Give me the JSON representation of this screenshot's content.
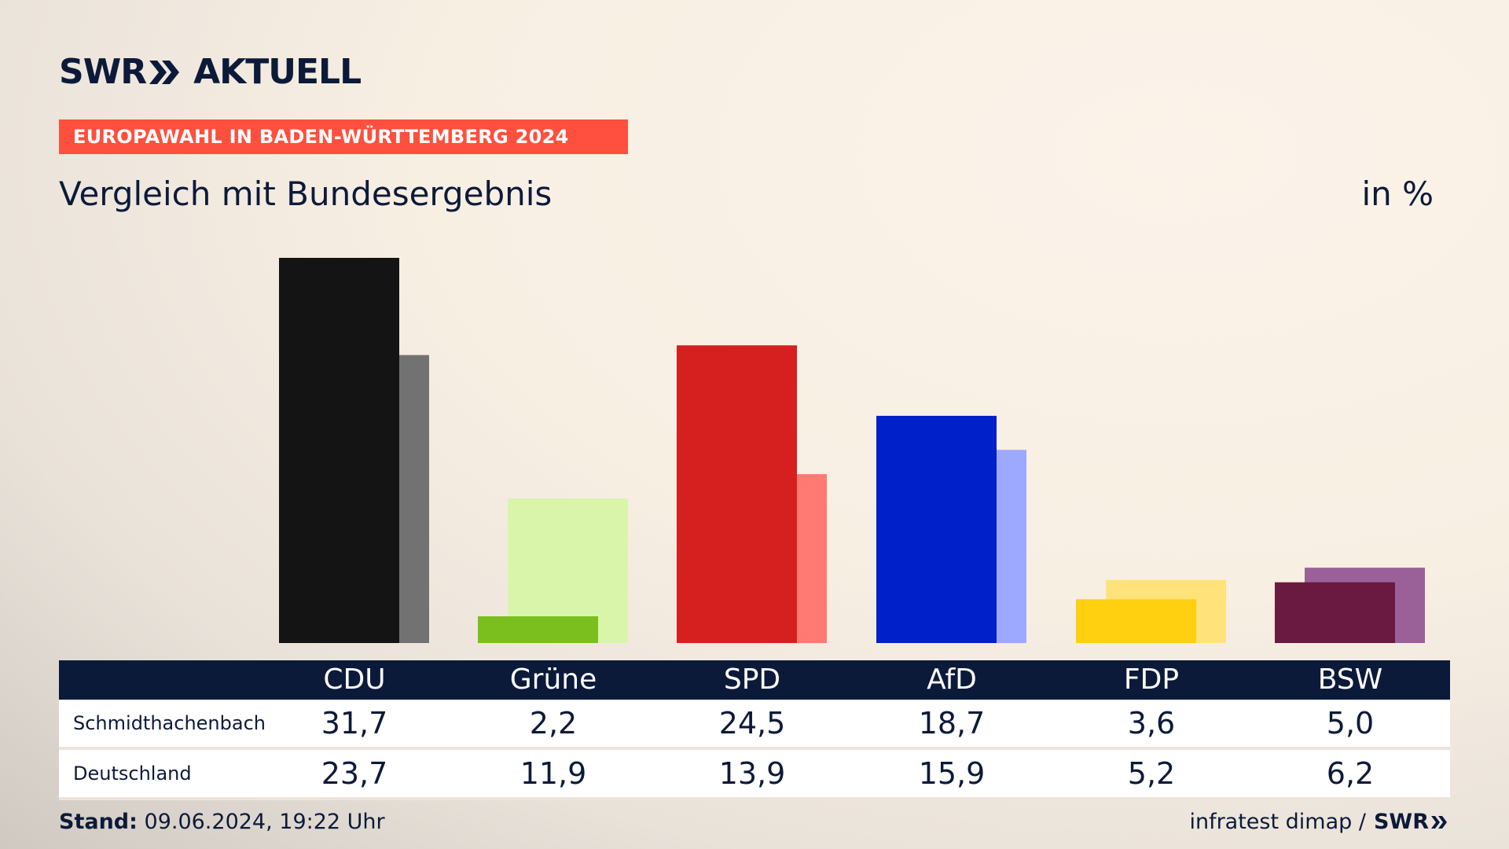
{
  "header": {
    "logo_text_1": "SWR",
    "logo_text_2": "AKTUELL",
    "badge": "EUROPAWAHL IN BADEN-WÜRTTEMBERG 2024",
    "subtitle": "Vergleich mit Bundesergebnis",
    "unit": "in %"
  },
  "chart_data": {
    "type": "bar",
    "title": "Vergleich mit Bundesergebnis",
    "unit": "in %",
    "categories": [
      "CDU",
      "Grüne",
      "SPD",
      "AfD",
      "FDP",
      "BSW"
    ],
    "series": [
      {
        "name": "Schmidthachenbach",
        "values": [
          31.7,
          2.2,
          24.5,
          18.7,
          3.6,
          5.0
        ],
        "colors": [
          "#141414",
          "#7abf1e",
          "#d62020",
          "#0021c9",
          "#ffd00f",
          "#6a1a40"
        ]
      },
      {
        "name": "Deutschland",
        "values": [
          23.7,
          11.9,
          13.9,
          15.9,
          5.2,
          6.2
        ],
        "colors": [
          "#737272",
          "#d8f5a9",
          "#ff7a72",
          "#9da9ff",
          "#ffe37a",
          "#9a6198"
        ]
      }
    ],
    "ylim": [
      0,
      31.7
    ],
    "grid": false,
    "legend": "table-below"
  },
  "table": {
    "headers": [
      "CDU",
      "Grüne",
      "SPD",
      "AfD",
      "FDP",
      "BSW"
    ],
    "rows": [
      {
        "label": "Schmidthachenbach",
        "values": [
          "31,7",
          "2,2",
          "24,5",
          "18,7",
          "3,6",
          "5,0"
        ]
      },
      {
        "label": "Deutschland",
        "values": [
          "23,7",
          "11,9",
          "13,9",
          "15,9",
          "5,2",
          "6,2"
        ]
      }
    ]
  },
  "footer": {
    "stand_label": "Stand:",
    "stand_value": "09.06.2024, 19:22 Uhr",
    "source": "infratest dimap /",
    "source_logo": "SWR"
  }
}
